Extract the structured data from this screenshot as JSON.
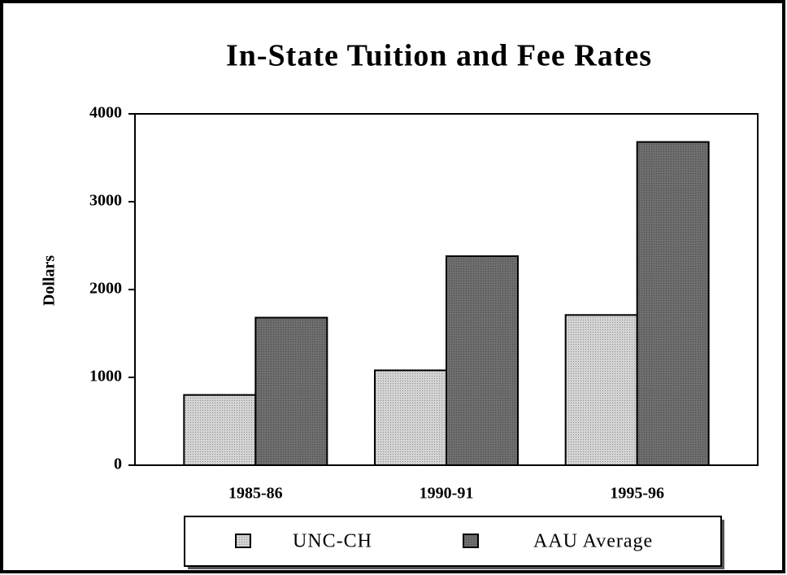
{
  "chart_data": {
    "type": "bar",
    "title": "In-State Tuition and Fee Rates",
    "y_label": "Dollars",
    "categories": [
      "1985-86",
      "1990-91",
      "1995-96"
    ],
    "series": [
      {
        "name": "UNC-CH",
        "color": "#d4d4d4",
        "values": [
          800,
          1080,
          1710
        ]
      },
      {
        "name": "AAU Average",
        "color": "#6e6e6e",
        "values": [
          1680,
          2380,
          3680
        ]
      }
    ],
    "ylim": [
      0,
      4000
    ],
    "yticks": [
      0,
      1000,
      2000,
      3000,
      4000
    ],
    "grid": false,
    "legend": "bottom"
  }
}
